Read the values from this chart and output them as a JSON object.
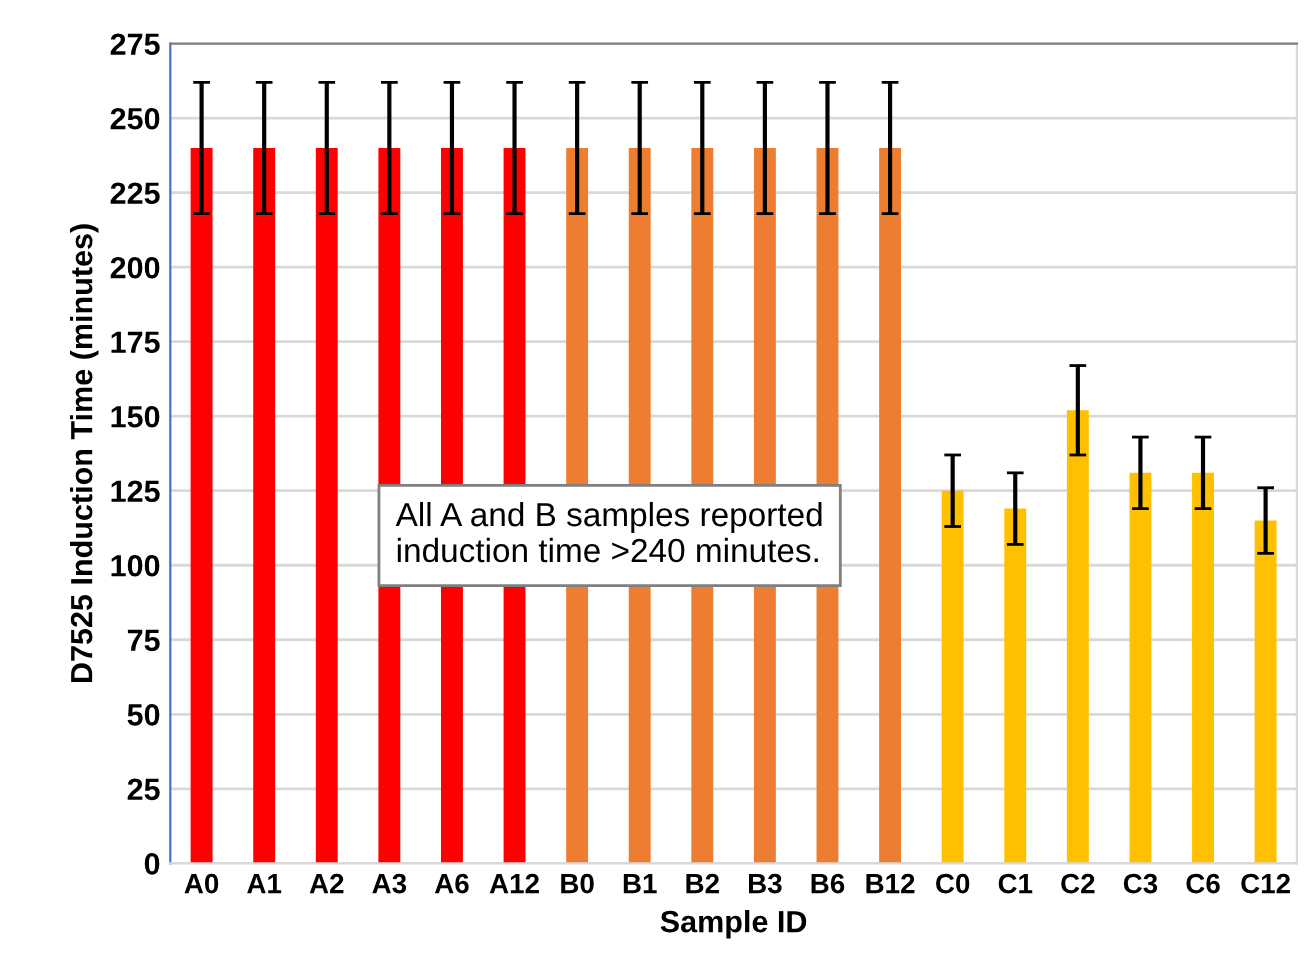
{
  "chart_data": {
    "type": "bar",
    "xlabel": "Sample ID",
    "ylabel": "D7525 Induction Time (minutes)",
    "categories": [
      "A0",
      "A1",
      "A2",
      "A3",
      "A6",
      "A12",
      "B0",
      "B1",
      "B2",
      "B3",
      "B6",
      "B12",
      "C0",
      "C1",
      "C2",
      "C3",
      "C6",
      "C12"
    ],
    "values": [
      240,
      240,
      240,
      240,
      240,
      240,
      240,
      240,
      240,
      240,
      240,
      240,
      125,
      119,
      152,
      131,
      131,
      115
    ],
    "errors": [
      22,
      22,
      22,
      22,
      22,
      22,
      22,
      22,
      22,
      22,
      22,
      22,
      12,
      12,
      15,
      12,
      12,
      11
    ],
    "colors": [
      "#ff0000",
      "#ff0000",
      "#ff0000",
      "#ff0000",
      "#ff0000",
      "#ff0000",
      "#ed7d31",
      "#ed7d31",
      "#ed7d31",
      "#ed7d31",
      "#ed7d31",
      "#ed7d31",
      "#ffc000",
      "#ffc000",
      "#ffc000",
      "#ffc000",
      "#ffc000",
      "#ffc000"
    ],
    "ylim": [
      0,
      275
    ],
    "yticks": [
      0,
      25,
      50,
      75,
      100,
      125,
      150,
      175,
      200,
      225,
      250,
      275
    ],
    "grid": "y",
    "annotations": [
      "All A and B samples reported\ninduction time >240 minutes."
    ]
  }
}
